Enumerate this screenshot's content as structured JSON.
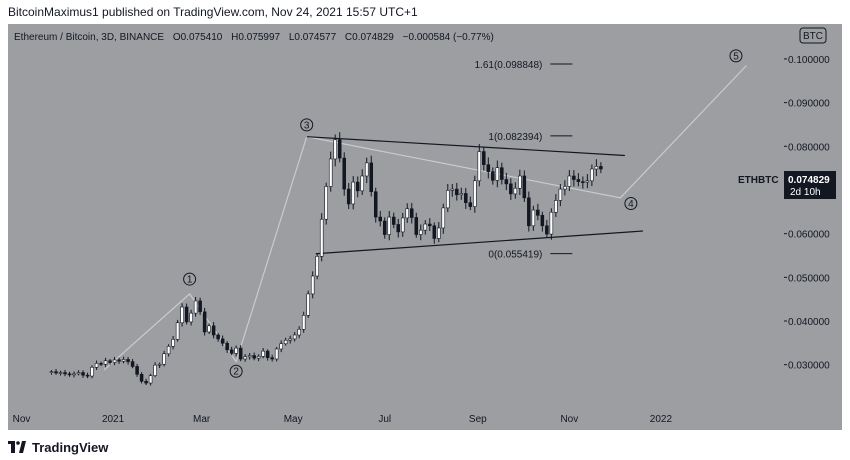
{
  "header": {
    "publisher_line": "BitcoinMaximus1 published on TradingView.com, Nov 24, 2021 15:57 UTC+1"
  },
  "legend": {
    "symbol": "Ethereum / Bitcoin, 3D, BINANCE",
    "open_label": "O",
    "open": "0.075410",
    "high_label": "H",
    "high": "0.075997",
    "low_label": "L",
    "low": "0.074577",
    "close_label": "C",
    "close": "0.074829",
    "change": "−0.000584 (−0.77%)"
  },
  "currency_badge": "BTC",
  "price_tag": {
    "symbol": "ETHBTC",
    "price": "0.074829",
    "countdown": "2d 10h",
    "bg_color": "#131722"
  },
  "footer": {
    "brand": "TradingView"
  },
  "colors": {
    "background": "#9c9ea1",
    "bull": "#ffffff",
    "bear": "#131722",
    "line": "#131722",
    "path": "#c9cbce"
  },
  "chart_data": {
    "type": "candlestick",
    "title": "Ethereum / Bitcoin, 3D, BINANCE",
    "y_scale": "linear",
    "ylim": [
      0.021,
      0.108
    ],
    "y_ticks": [
      "0.030000",
      "0.040000",
      "0.050000",
      "0.060000",
      "0.070000",
      "0.080000",
      "0.090000",
      "0.100000"
    ],
    "y_tick_values": [
      0.03,
      0.04,
      0.05,
      0.06,
      0.07,
      0.08,
      0.09,
      0.1
    ],
    "x_ticks": [
      {
        "label": "Nov",
        "date": "2020-11-01"
      },
      {
        "label": "2021",
        "date": "2021-01-01"
      },
      {
        "label": "Mar",
        "date": "2021-03-01"
      },
      {
        "label": "May",
        "date": "2021-05-01"
      },
      {
        "label": "Jul",
        "date": "2021-07-01"
      },
      {
        "label": "Sep",
        "date": "2021-09-01"
      },
      {
        "label": "Nov",
        "date": "2021-11-01"
      },
      {
        "label": "2022",
        "date": "2022-01-01"
      }
    ],
    "xlim": [
      "2020-10-23",
      "2022-03-20"
    ],
    "closes": [
      0.0284,
      0.0281,
      0.0282,
      0.0279,
      0.0277,
      0.0279,
      0.0282,
      0.0276,
      0.0274,
      0.0294,
      0.0303,
      0.0301,
      0.0309,
      0.0305,
      0.0311,
      0.0308,
      0.0312,
      0.0307,
      0.0296,
      0.0278,
      0.0262,
      0.0258,
      0.0275,
      0.0299,
      0.0301,
      0.0325,
      0.0342,
      0.0358,
      0.0396,
      0.0432,
      0.0398,
      0.0418,
      0.0446,
      0.0421,
      0.0375,
      0.0389,
      0.0368,
      0.0359,
      0.0349,
      0.0334,
      0.0326,
      0.0338,
      0.0313,
      0.0318,
      0.0321,
      0.0315,
      0.0319,
      0.0331,
      0.0316,
      0.0313,
      0.0336,
      0.0348,
      0.0356,
      0.0359,
      0.0368,
      0.0381,
      0.0413,
      0.0462,
      0.0503,
      0.0548,
      0.0633,
      0.0708,
      0.0771,
      0.0815,
      0.0773,
      0.0702,
      0.0668,
      0.0718,
      0.0698,
      0.0732,
      0.0762,
      0.0696,
      0.0638,
      0.0629,
      0.0598,
      0.0638,
      0.0621,
      0.0604,
      0.0636,
      0.0657,
      0.0637,
      0.0598,
      0.0608,
      0.0622,
      0.0618,
      0.0589,
      0.0613,
      0.0659,
      0.0699,
      0.0702,
      0.0689,
      0.0692,
      0.0671,
      0.0662,
      0.0721,
      0.0788,
      0.0758,
      0.0742,
      0.0722,
      0.0751,
      0.0724,
      0.0714,
      0.0691,
      0.0704,
      0.0732,
      0.0682,
      0.0618,
      0.0654,
      0.0642,
      0.0618,
      0.0599,
      0.0649,
      0.0676,
      0.0702,
      0.0708,
      0.0732,
      0.0724,
      0.0719,
      0.0718,
      0.0721,
      0.0748,
      0.0754,
      0.0748
    ],
    "annotations": {
      "trendlines": "converging triangle: upper resistance descending from May high, lower support rising",
      "fib_levels": [
        {
          "label": "1.61(0.098848)",
          "value": 0.098848
        },
        {
          "label": "1(0.082394)",
          "value": 0.082394
        },
        {
          "label": "0(0.055419)",
          "value": 0.055419
        }
      ],
      "wave_labels": [
        {
          "label": "1",
          "date": "2021-02-21",
          "value": 0.0496
        },
        {
          "label": "2",
          "date": "2021-03-24",
          "value": 0.0285
        },
        {
          "label": "3",
          "date": "2021-05-10",
          "value": 0.0849
        },
        {
          "label": "4",
          "date": "2021-12-12",
          "value": 0.0669
        },
        {
          "label": "5",
          "date": "2022-02-20",
          "value": 0.1007
        }
      ],
      "wave_path": [
        {
          "date": "2020-12-26",
          "value": 0.0288
        },
        {
          "date": "2021-02-21",
          "value": 0.0462
        },
        {
          "date": "2021-03-24",
          "value": 0.0307
        },
        {
          "date": "2021-05-10",
          "value": 0.0822
        },
        {
          "date": "2021-12-05",
          "value": 0.0682
        },
        {
          "date": "2022-02-27",
          "value": 0.0985
        }
      ],
      "triangle_upper": [
        {
          "date": "2021-05-10",
          "value": 0.0822
        },
        {
          "date": "2021-12-08",
          "value": 0.0779
        }
      ],
      "triangle_lower": [
        {
          "date": "2021-05-16",
          "value": 0.0554
        },
        {
          "date": "2021-12-20",
          "value": 0.0606
        }
      ]
    }
  }
}
